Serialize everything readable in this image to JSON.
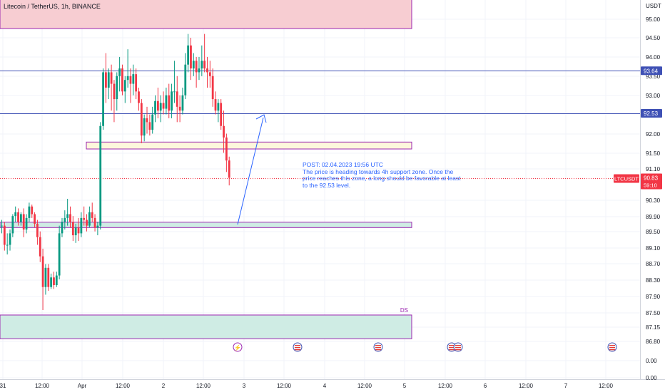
{
  "header": {
    "title": "Litecoin / TetherUS, 1h, BINANCE",
    "currency": "USDT"
  },
  "annotation": {
    "lines": [
      "POST: 02.04.2023 19:56 UTC",
      "The price is heading towards 4h support zone. Once the",
      "price reaches this zone, a long should be favorable at least",
      "to the 92.53 level."
    ]
  },
  "zone_label": "DS",
  "price_labels": {
    "line_high": "93.64",
    "line_target": "92.53",
    "symbol": "LTCUSDT",
    "last_price": "90.83",
    "countdown": "59:10"
  },
  "colors": {
    "up": "#089981",
    "down": "#f23645",
    "level_line": "#3f51b5",
    "supply_zone": "#f7cdd2",
    "demand_zone": "#cfece4",
    "yellow_zone": "#fdf7dc",
    "zone_border": "#9c27b0",
    "arrow": "#2962ff"
  },
  "chart_data": {
    "type": "candlestick",
    "symbol": "LTCUSDT",
    "interval": "1h",
    "exchange": "BINANCE",
    "y_ticks": [
      "95.00",
      "94.50",
      "94.00",
      "93.50",
      "93.00",
      "92.00",
      "91.50",
      "91.10",
      "90.30",
      "89.90",
      "89.50",
      "89.10",
      "88.70",
      "88.30",
      "87.90",
      "87.50",
      "87.15",
      "86.80",
      "0.00",
      "0.00"
    ],
    "x_ticks": [
      "31",
      "12:00",
      "Apr",
      "12:00",
      "2",
      "12:00",
      "3",
      "12:00",
      "4",
      "12:00",
      "5",
      "12:00",
      "6",
      "12:00",
      "7",
      "12:00"
    ],
    "horizontal_levels": [
      93.64,
      92.53
    ],
    "last_price": 90.83,
    "zones": [
      {
        "name": "supply",
        "from": 94.74,
        "to": 95.56
      },
      {
        "name": "resistance-flip",
        "from": 91.6,
        "to": 91.78
      },
      {
        "name": "support-4h",
        "from": 89.55,
        "to": 89.69
      },
      {
        "name": "DS",
        "from": 86.65,
        "to": 87.27
      }
    ],
    "candles": [
      [
        89.6,
        89.75,
        89.4,
        89.6
      ],
      [
        89.6,
        89.7,
        88.95,
        89.1
      ],
      [
        89.1,
        89.4,
        88.85,
        89.1
      ],
      [
        89.1,
        89.5,
        88.95,
        89.4
      ],
      [
        89.4,
        89.9,
        89.3,
        89.85
      ],
      [
        89.85,
        90.1,
        89.7,
        89.95
      ],
      [
        89.95,
        90.05,
        89.6,
        89.7
      ],
      [
        89.7,
        89.95,
        89.6,
        89.9
      ],
      [
        89.9,
        90.05,
        89.3,
        89.5
      ],
      [
        89.5,
        89.9,
        89.4,
        89.8
      ],
      [
        89.8,
        90.2,
        89.7,
        90.1
      ],
      [
        90.1,
        90.15,
        89.8,
        89.9
      ],
      [
        89.9,
        89.95,
        89.55,
        89.65
      ],
      [
        89.65,
        89.75,
        89.1,
        89.3
      ],
      [
        89.3,
        89.45,
        88.65,
        88.8
      ],
      [
        88.8,
        89.0,
        87.4,
        88.0
      ],
      [
        88.0,
        88.6,
        87.8,
        88.5
      ],
      [
        88.5,
        88.6,
        87.9,
        88.0
      ],
      [
        88.0,
        88.35,
        87.95,
        88.25
      ],
      [
        88.25,
        88.4,
        87.95,
        88.05
      ],
      [
        88.05,
        88.4,
        88.0,
        88.3
      ],
      [
        88.3,
        89.6,
        88.2,
        89.4
      ],
      [
        89.4,
        89.8,
        89.3,
        89.7
      ],
      [
        89.7,
        90.0,
        89.5,
        89.8
      ],
      [
        89.8,
        90.3,
        89.6,
        89.9
      ],
      [
        89.9,
        90.1,
        89.55,
        89.7
      ],
      [
        89.7,
        89.85,
        89.2,
        89.35
      ],
      [
        89.35,
        89.65,
        89.15,
        89.55
      ],
      [
        89.55,
        89.8,
        89.2,
        89.4
      ],
      [
        89.4,
        89.95,
        89.3,
        89.8
      ],
      [
        89.8,
        90.1,
        89.6,
        89.75
      ],
      [
        89.75,
        89.9,
        89.45,
        89.6
      ],
      [
        89.6,
        90.1,
        89.55,
        89.95
      ],
      [
        89.95,
        90.2,
        89.7,
        89.8
      ],
      [
        89.8,
        89.9,
        89.45,
        89.55
      ],
      [
        89.55,
        89.7,
        89.35,
        89.6
      ],
      [
        89.6,
        92.3,
        89.5,
        92.2
      ],
      [
        92.2,
        93.7,
        92.1,
        93.6
      ],
      [
        93.6,
        94.1,
        92.8,
        93.2
      ],
      [
        93.2,
        93.7,
        92.9,
        93.6
      ],
      [
        93.6,
        93.8,
        92.6,
        93.3
      ],
      [
        93.3,
        93.4,
        92.3,
        92.9
      ],
      [
        92.9,
        93.6,
        92.6,
        93.5
      ],
      [
        93.5,
        94.0,
        93.1,
        93.7
      ],
      [
        93.7,
        93.8,
        93.0,
        93.1
      ],
      [
        93.1,
        93.5,
        92.8,
        93.4
      ],
      [
        93.4,
        94.2,
        93.2,
        93.5
      ],
      [
        93.5,
        93.7,
        92.8,
        93.3
      ],
      [
        93.3,
        93.8,
        93.0,
        93.55
      ],
      [
        93.55,
        93.7,
        92.9,
        93.1
      ],
      [
        93.1,
        93.2,
        92.6,
        92.8
      ],
      [
        92.8,
        92.9,
        91.75,
        91.95
      ],
      [
        91.95,
        92.5,
        91.8,
        92.4
      ],
      [
        92.4,
        92.7,
        92.0,
        92.3
      ],
      [
        92.3,
        92.5,
        91.95,
        92.1
      ],
      [
        92.1,
        92.7,
        92.0,
        92.5
      ],
      [
        92.5,
        93.0,
        92.3,
        92.85
      ],
      [
        92.85,
        93.2,
        92.4,
        92.6
      ],
      [
        92.6,
        93.0,
        92.3,
        92.8
      ],
      [
        92.8,
        93.1,
        92.5,
        92.65
      ],
      [
        92.65,
        93.2,
        92.5,
        93.0
      ],
      [
        93.0,
        93.3,
        92.4,
        92.6
      ],
      [
        92.6,
        93.3,
        92.4,
        93.1
      ],
      [
        93.1,
        93.9,
        92.8,
        93.1
      ],
      [
        93.1,
        93.5,
        92.3,
        92.7
      ],
      [
        92.7,
        93.0,
        92.3,
        92.6
      ],
      [
        92.6,
        93.2,
        92.5,
        93.0
      ],
      [
        93.0,
        94.1,
        92.9,
        93.8
      ],
      [
        93.8,
        94.6,
        93.6,
        94.3
      ],
      [
        94.3,
        94.5,
        93.4,
        93.7
      ],
      [
        93.7,
        94.1,
        93.5,
        93.9
      ],
      [
        93.9,
        94.0,
        93.2,
        93.6
      ],
      [
        93.6,
        94.0,
        93.4,
        93.7
      ],
      [
        93.7,
        94.3,
        93.5,
        93.9
      ],
      [
        93.9,
        94.6,
        93.6,
        93.7
      ],
      [
        93.7,
        94.0,
        93.2,
        93.6
      ],
      [
        93.6,
        93.9,
        93.2,
        93.5
      ],
      [
        93.5,
        93.7,
        92.7,
        92.9
      ],
      [
        92.9,
        93.1,
        92.5,
        92.6
      ],
      [
        92.6,
        92.9,
        92.3,
        92.8
      ],
      [
        92.8,
        92.9,
        92.1,
        92.2
      ],
      [
        92.2,
        92.6,
        91.5,
        91.9
      ],
      [
        91.9,
        92.0,
        91.0,
        91.3
      ],
      [
        91.3,
        91.4,
        90.65,
        90.85
      ]
    ]
  }
}
